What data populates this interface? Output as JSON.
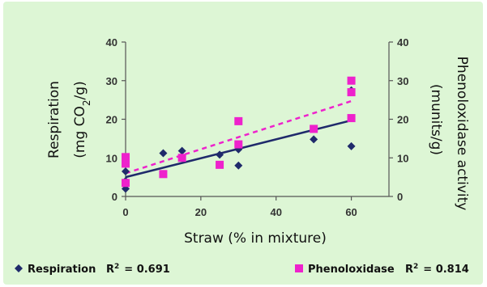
{
  "chart_data": {
    "type": "scatter",
    "xlabel": "Straw (% in mixture)",
    "ylabel_left_line1": "Respiration",
    "ylabel_left_line2_prefix": "(mg CO",
    "ylabel_left_line2_sub": "2",
    "ylabel_left_line2_suffix": "/g)",
    "ylabel_right_line1": "Phenoloxidase activity",
    "ylabel_right_line2": "(munits/g)",
    "xlim": [
      0,
      70
    ],
    "ylim_left": [
      0,
      40
    ],
    "ylim_right": [
      0,
      40
    ],
    "x_ticks": [
      "0",
      "20",
      "40",
      "60"
    ],
    "y_ticks_left": [
      "0",
      "10",
      "20",
      "30",
      "40"
    ],
    "y_ticks_right": [
      "0",
      "10",
      "20",
      "30",
      "40"
    ],
    "series": [
      {
        "name": "Respiration",
        "r2_label": "R",
        "r2_sup": "2",
        "r2_value": "= 0.691",
        "marker": "diamond",
        "color": "#1f2a6b",
        "points": [
          [
            0,
            2
          ],
          [
            0,
            4
          ],
          [
            0,
            6.5
          ],
          [
            0,
            9
          ],
          [
            10,
            11.2
          ],
          [
            15,
            11.8
          ],
          [
            25,
            10.8
          ],
          [
            30,
            8
          ],
          [
            30,
            12.2
          ],
          [
            50,
            14.8
          ],
          [
            60,
            13
          ],
          [
            60,
            27.5
          ]
        ],
        "trendline": {
          "style": "solid",
          "from": [
            0,
            5
          ],
          "to": [
            60,
            19.7
          ]
        }
      },
      {
        "name": "Phenoloxidase",
        "r2_label": "R",
        "r2_sup": "2",
        "r2_value": "= 0.814",
        "marker": "square",
        "color": "#ee22cc",
        "points": [
          [
            0,
            3.5
          ],
          [
            0,
            8.5
          ],
          [
            0,
            10.2
          ],
          [
            10,
            5.8
          ],
          [
            15,
            10
          ],
          [
            25,
            8.2
          ],
          [
            30,
            13.5
          ],
          [
            30,
            19.5
          ],
          [
            50,
            17.5
          ],
          [
            60,
            20.3
          ],
          [
            60,
            27
          ],
          [
            60,
            30
          ]
        ],
        "trendline": {
          "style": "dashed",
          "from": [
            0,
            6
          ],
          "to": [
            60,
            24.7
          ]
        }
      }
    ]
  }
}
